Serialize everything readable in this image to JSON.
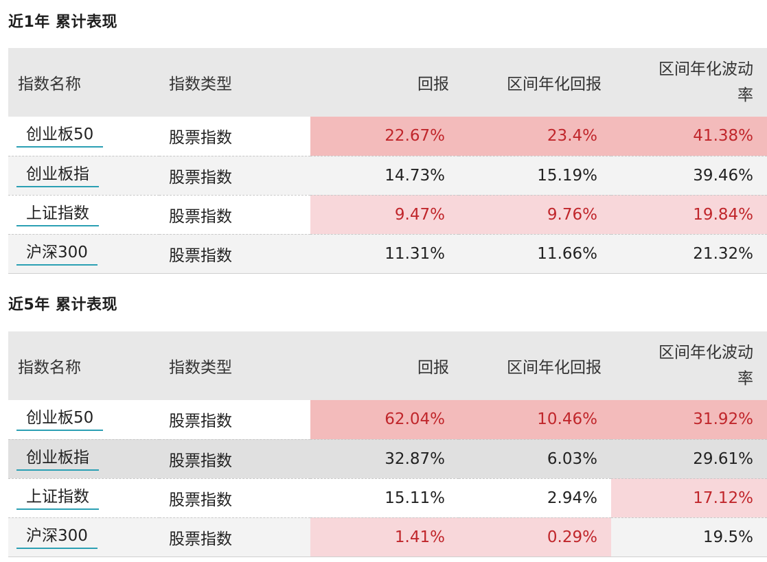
{
  "headers": [
    "指数名称",
    "指数类型",
    "回报",
    "区间年化回报",
    "区间年化波动",
    "率"
  ],
  "sections": [
    {
      "title": "近1年 累计表现",
      "rows": [
        {
          "name": "创业板50",
          "type": "股票指数",
          "ret": "22.67%",
          "ann_ret": "23.4%",
          "vol": "41.38%"
        },
        {
          "name": "创业板指",
          "type": "股票指数",
          "ret": "14.73%",
          "ann_ret": "15.19%",
          "vol": "39.46%"
        },
        {
          "name": "上证指数",
          "type": "股票指数",
          "ret": "9.47%",
          "ann_ret": "9.76%",
          "vol": "19.84%"
        },
        {
          "name": "沪深300",
          "type": "股票指数",
          "ret": "11.31%",
          "ann_ret": "11.66%",
          "vol": "21.32%"
        }
      ]
    },
    {
      "title": "近5年 累计表现",
      "rows": [
        {
          "name": "创业板50",
          "type": "股票指数",
          "ret": "62.04%",
          "ann_ret": "10.46%",
          "vol": "31.92%"
        },
        {
          "name": "创业板指",
          "type": "股票指数",
          "ret": "32.87%",
          "ann_ret": "6.03%",
          "vol": "29.61%"
        },
        {
          "name": "上证指数",
          "type": "股票指数",
          "ret": "15.11%",
          "ann_ret": "2.94%",
          "vol": "17.12%"
        },
        {
          "name": "沪深300",
          "type": "股票指数",
          "ret": "1.41%",
          "ann_ret": "0.29%",
          "vol": "19.5%"
        }
      ]
    }
  ],
  "colors": {
    "strong_highlight": "#f3bbbb",
    "light_highlight": "#f8d7da",
    "highlight_text": "#c0262b",
    "name_underline": "#2a9fb3",
    "header_bg": "#e8e8e8"
  }
}
